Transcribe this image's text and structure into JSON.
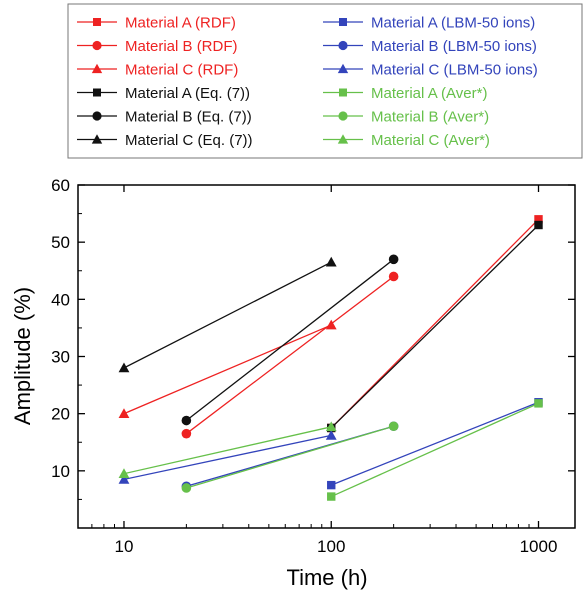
{
  "chart_data": {
    "type": "line",
    "title": "",
    "xlabel": "Time (h)",
    "ylabel": "Amplitude (%)",
    "xscale": "log",
    "xlim": [
      6,
      1500
    ],
    "ylim": [
      0,
      60
    ],
    "xticks": [
      10,
      100,
      1000
    ],
    "xtick_labels": [
      "10",
      "100",
      "1000"
    ],
    "yticks": [
      10,
      20,
      30,
      40,
      50,
      60
    ],
    "ytick_labels": [
      "10",
      "20",
      "30",
      "40",
      "50",
      "60"
    ],
    "grid": false,
    "legend_position": "top",
    "series": [
      {
        "name": "Material A (RDF)",
        "color": "#ee2222",
        "marker": "square",
        "points": [
          [
            100,
            17.5
          ],
          [
            1000,
            54
          ]
        ]
      },
      {
        "name": "Material B (RDF)",
        "color": "#ee2222",
        "marker": "circle",
        "points": [
          [
            20,
            16.5
          ],
          [
            200,
            44
          ]
        ]
      },
      {
        "name": "Material C (RDF)",
        "color": "#ee2222",
        "marker": "triangle",
        "points": [
          [
            10,
            20
          ],
          [
            100,
            35.5
          ]
        ]
      },
      {
        "name": "Material A (Eq. (7))",
        "color": "#111111",
        "marker": "square",
        "points": [
          [
            100,
            17.5
          ],
          [
            1000,
            53
          ]
        ]
      },
      {
        "name": "Material B (Eq. (7))",
        "color": "#111111",
        "marker": "circle",
        "points": [
          [
            20,
            18.8
          ],
          [
            200,
            47
          ]
        ]
      },
      {
        "name": "Material C (Eq. (7))",
        "color": "#111111",
        "marker": "triangle",
        "points": [
          [
            10,
            28
          ],
          [
            100,
            46.5
          ]
        ]
      },
      {
        "name": "Material A (LBM-50 ions)",
        "color": "#3344bb",
        "marker": "square",
        "points": [
          [
            100,
            7.5
          ],
          [
            1000,
            22
          ]
        ]
      },
      {
        "name": "Material B (LBM-50 ions)",
        "color": "#3344bb",
        "marker": "circle",
        "points": [
          [
            20,
            7.3
          ],
          [
            200,
            17.8
          ]
        ]
      },
      {
        "name": "Material C (LBM-50 ions)",
        "color": "#3344bb",
        "marker": "triangle",
        "points": [
          [
            10,
            8.5
          ],
          [
            100,
            16.2
          ]
        ]
      },
      {
        "name": "Material A (Aver*)",
        "color": "#66c04a",
        "marker": "square",
        "points": [
          [
            100,
            5.5
          ],
          [
            1000,
            21.8
          ]
        ]
      },
      {
        "name": "Material B (Aver*)",
        "color": "#66c04a",
        "marker": "circle",
        "points": [
          [
            20,
            7
          ],
          [
            200,
            17.8
          ]
        ]
      },
      {
        "name": "Material C (Aver*)",
        "color": "#66c04a",
        "marker": "triangle",
        "points": [
          [
            10,
            9.5
          ],
          [
            100,
            17.7
          ]
        ]
      }
    ]
  }
}
